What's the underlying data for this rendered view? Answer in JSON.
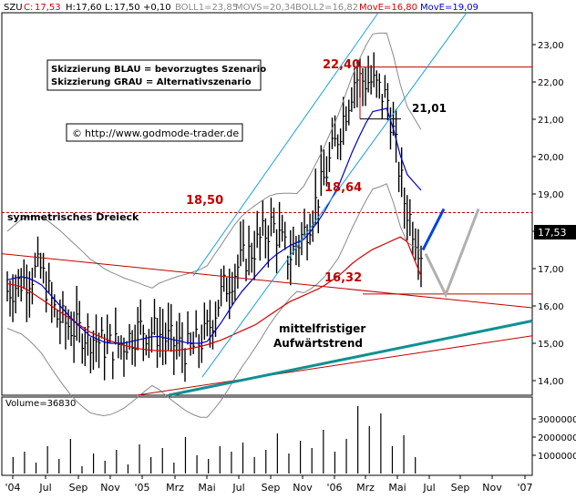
{
  "colors": {
    "ma200": "#d80000",
    "ma50": "#0000c8",
    "boll": "#8a8a8a",
    "trend_channel": "#1aa0e0",
    "trend_line_teal": "#109090",
    "level_line": "#c00000",
    "scenario_blue": "#0044dd",
    "scenario_gray": "#b0b0b0",
    "price_box": "#000000",
    "price_box_text": "#ffffff"
  },
  "header": {
    "ticker": "SZU",
    "close_label": "C:",
    "close_value": "17,53",
    "high_label": "H:",
    "high_value": "17,60",
    "low_label": "L:",
    "low_value": "17,50",
    "change": "+0,10",
    "boll1": "BOLL1=23,85",
    "movs": "MOVS=20,34",
    "boll2": "BOLL2=16,82",
    "move1": "MovE=16,80",
    "move2": "MovE=19,09"
  },
  "legend_box": {
    "line1": "Skizzierung BLAU = bevorzugtes Szenario",
    "line2": "Skizzierung GRAU = Alternativszenario"
  },
  "copyright_box": {
    "symbol": "©",
    "url": "http://www.godmode-trader.de"
  },
  "annotations": {
    "level_2240": "22,40",
    "level_2101": "21,01",
    "level_1850": "18,50",
    "level_1864": "18,64",
    "level_1632": "16,32",
    "triangle": "symmetrisches Dreieck",
    "trend_line1": "mittelfristiger",
    "trend_line2": "Aufwärtstrend"
  },
  "price_box": "17,53",
  "volume_label": "Volume=36830",
  "chart_data": [
    {
      "type": "ohlc",
      "title": "SZU",
      "x_axis": {
        "type": "date",
        "tick_labels": [
          "'04",
          "Jul",
          "Sep",
          "Nov",
          "'05",
          "Mrz",
          "Mai",
          "Jul",
          "Sep",
          "Nov",
          "'06",
          "Mrz",
          "Mai",
          "Jul",
          "Sep",
          "Nov",
          "'07"
        ]
      },
      "y_axis": {
        "position": "right",
        "ylim": [
          13.6,
          24.0
        ],
        "ticks": [
          "14,00",
          "15,00",
          "16,00",
          "17,00",
          "18,00",
          "19,00",
          "20,00",
          "21,00",
          "22,00",
          "23,00"
        ]
      },
      "series": [
        {
          "role": "price_bars",
          "description_months": [
            "2004-05",
            "2004-06",
            "2004-07",
            "2004-08",
            "2004-09",
            "2004-10",
            "2004-11",
            "2004-12",
            "2005-01",
            "2005-02",
            "2005-03",
            "2005-04",
            "2005-05",
            "2005-06",
            "2005-07",
            "2005-08",
            "2005-09",
            "2005-10",
            "2005-11",
            "2005-12",
            "2006-01",
            "2006-02",
            "2006-03",
            "2006-04",
            "2006-05",
            "2006-06"
          ],
          "close": [
            16.4,
            16.7,
            17.0,
            15.7,
            15.4,
            15.2,
            14.9,
            15.0,
            15.4,
            15.3,
            15.0,
            14.8,
            15.2,
            16.4,
            17.1,
            17.6,
            18.2,
            17.3,
            18.0,
            19.2,
            20.6,
            22.1,
            22.0,
            21.5,
            18.8,
            17.5
          ]
        },
        {
          "role": "ma200",
          "values": [
            16.6,
            16.5,
            16.2,
            15.9,
            15.6,
            15.3,
            15.1,
            14.95,
            14.85,
            14.8,
            14.8,
            14.85,
            14.95,
            15.1,
            15.3,
            15.5,
            15.8,
            16.1,
            16.3,
            16.5,
            16.8,
            17.2,
            17.5,
            17.7,
            17.9,
            16.8
          ]
        },
        {
          "role": "ma50",
          "values": [
            16.7,
            16.8,
            16.6,
            16.1,
            15.6,
            15.2,
            15.0,
            15.0,
            15.1,
            15.2,
            15.1,
            15.0,
            15.0,
            15.6,
            16.3,
            16.8,
            17.3,
            17.6,
            17.8,
            18.4,
            19.2,
            20.3,
            21.2,
            21.3,
            19.6,
            19.1
          ]
        }
      ],
      "levels": [
        22.4,
        21.01,
        18.5,
        18.64,
        16.32
      ],
      "current_price": 17.53
    },
    {
      "type": "bar",
      "title": "Volume=36830",
      "y_axis": {
        "position": "right",
        "ticks": [
          "1000000",
          "2000000",
          "3000000"
        ],
        "ylim": [
          0,
          3500000
        ]
      },
      "x_axis": {
        "type": "date"
      },
      "values": [
        900000,
        1200000,
        600000,
        1500000,
        800000,
        1900000,
        400000,
        1100000,
        700000,
        1300000,
        500000,
        1600000,
        900000,
        1400000,
        600000,
        2000000,
        1000000,
        800000,
        1500000,
        1200000,
        1700000,
        900000,
        1300000,
        2200000,
        1100000,
        1800000,
        1400000,
        2400000,
        1200000,
        1900000,
        3700000,
        2600000,
        3300000,
        1500000,
        2100000,
        900000
      ]
    }
  ]
}
